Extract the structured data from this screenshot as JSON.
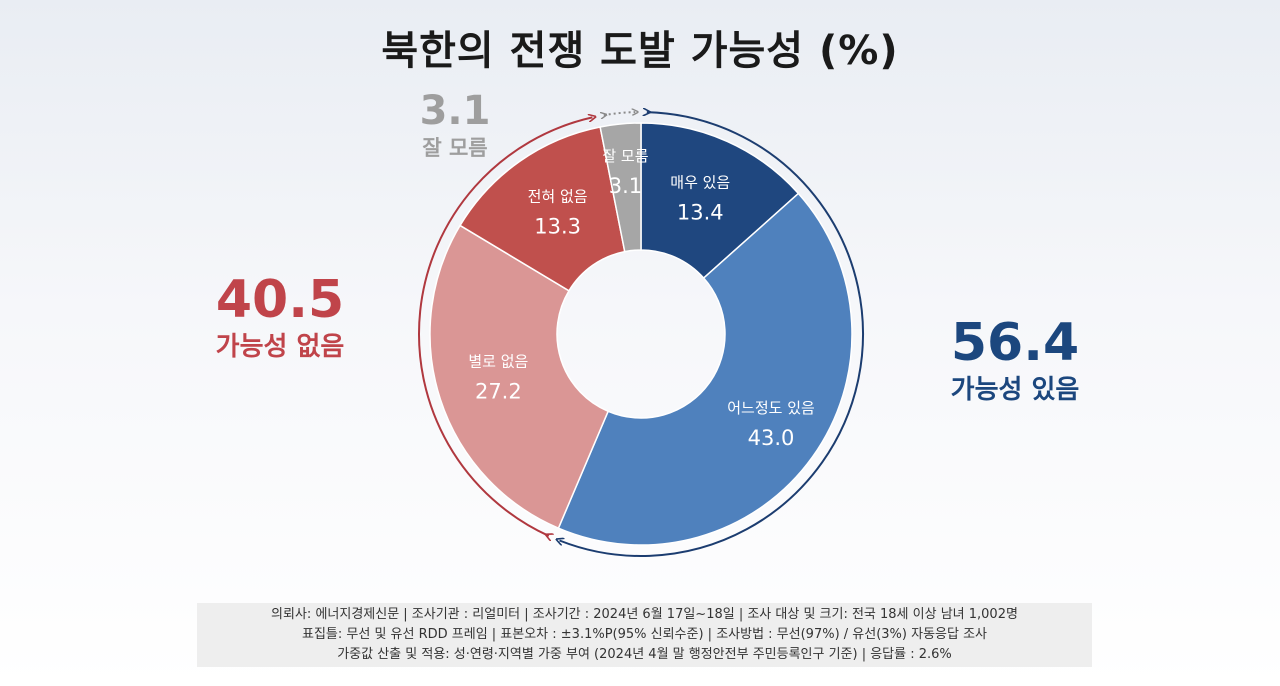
{
  "title": "북한의 전쟁 도발 가능성 (%)",
  "chart_data": {
    "type": "pie",
    "donut": true,
    "slices": [
      {
        "label": "매우 있음",
        "value": 13.4,
        "color": "#1f477f"
      },
      {
        "label": "어느정도 있음",
        "value": 43.0,
        "color": "#4f81bd"
      },
      {
        "label": "별로 없음",
        "value": 27.2,
        "color": "#da9695"
      },
      {
        "label": "전혀 없음",
        "value": 13.3,
        "color": "#c0504d"
      },
      {
        "label": "잘 모름",
        "value": 3.1,
        "color": "#a6a6a6"
      }
    ],
    "groups": {
      "negative": {
        "value": "40.5",
        "label": "가능성 없음",
        "color": "#c0444a"
      },
      "positive": {
        "value": "56.4",
        "label": "가능성 있음",
        "color": "#1c477e"
      },
      "unknown": {
        "value": "3.1",
        "label": "잘 모름",
        "color": "#9e9e9e"
      }
    }
  },
  "footer": {
    "line1": "의뢰사: 에너지경제신문 | 조사기관 : 리얼미터  |  조사기간 : 2024년 6월 17일~18일 | 조사 대상 및 크기: 전국 18세 이상 남녀 1,002명",
    "line2": "표집틀: 무선 및 유선 RDD 프레임 | 표본오차 : ±3.1%P(95% 신뢰수준) | 조사방법 : 무선(97%) / 유선(3%) 자동응답 조사",
    "line3": "가중값 산출 및 적용: 성·연령·지역별 가중 부여 (2024년 4월 말 행정안전부 주민등록인구 기준) | 응답률 : 2.6%"
  }
}
